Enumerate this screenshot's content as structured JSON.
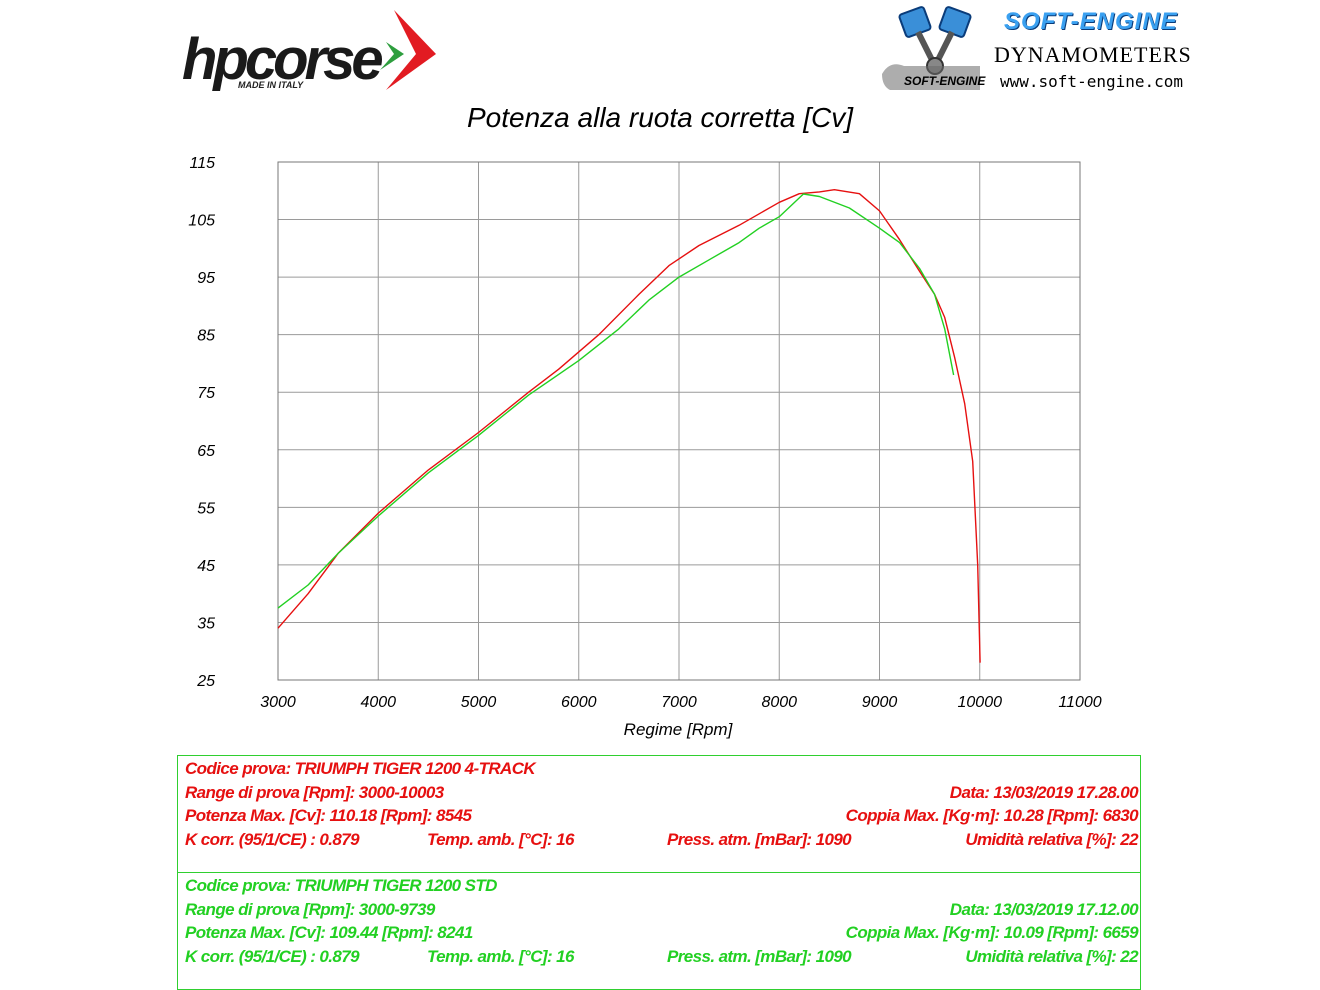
{
  "logo_left": {
    "brand": "hpcorse",
    "tagline": "MADE IN ITALY",
    "accent_colors": [
      "#e21b22",
      "#2e9e3e"
    ]
  },
  "logo_right": {
    "title": "SOFT-ENGINE",
    "subtitle": "DYNAMOMETERS",
    "small": "SOFT-ENGINE",
    "url": "www.soft-engine.com"
  },
  "chart_data": {
    "type": "line",
    "title": "Potenza alla ruota corretta [Cv]",
    "xlabel": "Regime [Rpm]",
    "ylabel": "",
    "xlim": [
      3000,
      11000
    ],
    "ylim": [
      25,
      115
    ],
    "x_ticks": [
      3000,
      4000,
      5000,
      6000,
      7000,
      8000,
      9000,
      10000,
      11000
    ],
    "y_ticks": [
      25,
      35,
      45,
      55,
      65,
      75,
      85,
      95,
      105,
      115
    ],
    "grid": true,
    "series": [
      {
        "color": "#e61010",
        "x": [
          3000,
          3300,
          3600,
          4000,
          4500,
          5000,
          5500,
          5800,
          6200,
          6600,
          6900,
          7200,
          7600,
          7800,
          8000,
          8200,
          8400,
          8550,
          8800,
          9000,
          9200,
          9400,
          9550,
          9650,
          9750,
          9850,
          9930,
          9980,
          10003
        ],
        "y": [
          34,
          40,
          47,
          54,
          61.5,
          68,
          75,
          79,
          85,
          92,
          97,
          100.5,
          104,
          106,
          108,
          109.5,
          109.8,
          110.18,
          109.5,
          106.5,
          101.5,
          96,
          92,
          88,
          81,
          73,
          63,
          45,
          28
        ]
      },
      {
        "color": "#22d022",
        "x": [
          3000,
          3300,
          3600,
          4000,
          4500,
          5000,
          5500,
          6000,
          6400,
          6700,
          7000,
          7300,
          7600,
          7800,
          8000,
          8241,
          8400,
          8700,
          9000,
          9200,
          9400,
          9550,
          9650,
          9739
        ],
        "y": [
          37.5,
          41.5,
          47,
          53.5,
          61,
          67.5,
          74.5,
          80.5,
          86,
          91,
          95,
          98,
          101,
          103.5,
          105.5,
          109.44,
          109,
          107,
          103.5,
          101,
          96.5,
          92,
          86,
          78
        ]
      }
    ]
  },
  "info_red": {
    "color": "#e61010",
    "code": "Codice prova: TRIUMPH TIGER 1200 4-TRACK",
    "range": "Range di prova [Rpm]: 3000-10003",
    "date": "Data: 13/03/2019  17.28.00",
    "power": "Potenza Max. [Cv]: 110.18  [Rpm]: 8545",
    "torque": "Coppia Max. [Kg·m]: 10.28  [Rpm]: 6830",
    "kcorr": "K corr. (95/1/CE) : 0.879",
    "temp": "Temp. amb. [°C]: 16",
    "press": "Press. atm. [mBar]: 1090",
    "humidity": "Umidità relativa [%]: 22"
  },
  "info_green": {
    "color": "#22d022",
    "code": "Codice prova: TRIUMPH TIGER 1200 STD",
    "range": "Range di prova [Rpm]: 3000-9739",
    "date": "Data: 13/03/2019  17.12.00",
    "power": "Potenza Max. [Cv]: 109.44  [Rpm]: 8241",
    "torque": "Coppia Max. [Kg·m]: 10.09  [Rpm]: 6659",
    "kcorr": "K corr. (95/1/CE) : 0.879",
    "temp": "Temp. amb. [°C]: 16",
    "press": "Press. atm. [mBar]: 1090",
    "humidity": "Umidità relativa [%]: 22"
  }
}
